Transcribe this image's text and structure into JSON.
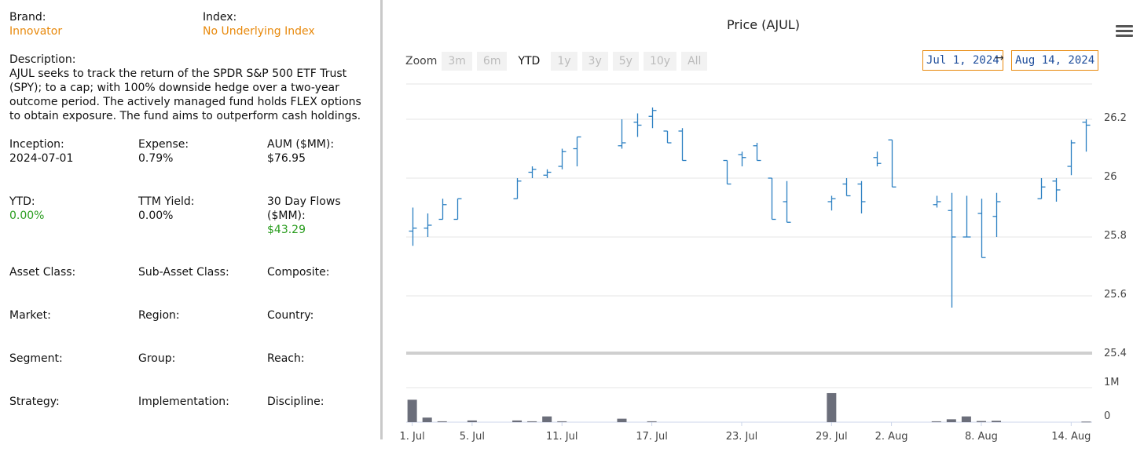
{
  "left": {
    "brand_label": "Brand:",
    "brand_value": "Innovator",
    "index_label": "Index:",
    "index_value": "No Underlying Index",
    "description_label": "Description:",
    "description_text": "AJUL seeks to track the return of the SPDR S&P 500 ETF Trust (SPY); to a cap; with 100% downside hedge over a two-year outcome period. The actively managed fund holds FLEX options to obtain exposure. The fund aims to outperform cash holdings.",
    "inception_label": "Inception:",
    "inception_value": "2024-07-01",
    "expense_label": "Expense:",
    "expense_value": "0.79%",
    "aum_label": "AUM ($MM):",
    "aum_value": "$76.95",
    "ytd_label": "YTD:",
    "ytd_value": "0.00%",
    "ttm_label": "TTM Yield:",
    "ttm_value": "0.00%",
    "flows_label": "30 Day Flows ($MM):",
    "flows_value": "$43.29",
    "asset_class_label": "Asset Class:",
    "sub_asset_class_label": "Sub-Asset Class:",
    "composite_label": "Composite:",
    "market_label": "Market:",
    "region_label": "Region:",
    "country_label": "Country:",
    "segment_label": "Segment:",
    "group_label": "Group:",
    "reach_label": "Reach:",
    "strategy_label": "Strategy:",
    "implementation_label": "Implementation:",
    "discipline_label": "Discipline:"
  },
  "chart_header": {
    "title": "Price (AJUL)",
    "zoom_label": "Zoom",
    "zoom_options": [
      "3m",
      "6m",
      "YTD",
      "1y",
      "3y",
      "5y",
      "10y",
      "All"
    ],
    "zoom_active": "YTD",
    "date_from": "Jul 1, 2024",
    "date_arrow": "→",
    "date_to": "Aug 14, 2024",
    "menu_icon": "hamburger-menu-icon"
  },
  "colors": {
    "ohlc": "#2b7fc2",
    "volume": "#6b6e7a",
    "orange": "#e8890c",
    "green": "#2a9d1f",
    "date_text": "#1f4e9c"
  },
  "chart_data": {
    "type": "ohlc",
    "title": "Price (AJUL)",
    "y_ticks": [
      25.4,
      25.6,
      25.8,
      26,
      26.2
    ],
    "y_tick_labels": [
      "25.4",
      "25.6",
      "25.8",
      "26",
      "26.2"
    ],
    "ylim": [
      25.4,
      26.32
    ],
    "x_tick_labels": [
      "1. Jul",
      "5. Jul",
      "11. Jul",
      "17. Jul",
      "23. Jul",
      "29. Jul",
      "2. Aug",
      "8. Aug",
      "14. Aug"
    ],
    "x_tick_days": [
      0,
      4,
      10,
      16,
      22,
      28,
      32,
      38,
      44
    ],
    "x_range_days": [
      -0.4,
      45.4
    ],
    "volume_ticks": [
      "1M",
      "0"
    ],
    "volume_max": 1200000,
    "bars": [
      {
        "d": 0,
        "o": 25.82,
        "h": 25.9,
        "l": 25.77,
        "c": 25.83
      },
      {
        "d": 1,
        "o": 25.83,
        "h": 25.88,
        "l": 25.8,
        "c": 25.84
      },
      {
        "d": 2,
        "o": 25.86,
        "h": 25.93,
        "l": 25.86,
        "c": 25.91
      },
      {
        "d": 3,
        "o": 25.86,
        "h": 25.93,
        "l": 25.86,
        "c": 25.93
      },
      {
        "d": 7,
        "o": 25.93,
        "h": 26.0,
        "l": 25.93,
        "c": 25.99
      },
      {
        "d": 8,
        "o": 26.02,
        "h": 26.04,
        "l": 26.0,
        "c": 26.03
      },
      {
        "d": 9,
        "o": 26.01,
        "h": 26.03,
        "l": 26.0,
        "c": 26.02
      },
      {
        "d": 10,
        "o": 26.04,
        "h": 26.1,
        "l": 26.03,
        "c": 26.09
      },
      {
        "d": 11,
        "o": 26.1,
        "h": 26.14,
        "l": 26.04,
        "c": 26.14
      },
      {
        "d": 14,
        "o": 26.11,
        "h": 26.2,
        "l": 26.1,
        "c": 26.12
      },
      {
        "d": 15,
        "o": 26.19,
        "h": 26.22,
        "l": 26.14,
        "c": 26.18
      },
      {
        "d": 16,
        "o": 26.21,
        "h": 26.24,
        "l": 26.17,
        "c": 26.23
      },
      {
        "d": 17,
        "o": 26.16,
        "h": 26.16,
        "l": 26.12,
        "c": 26.12
      },
      {
        "d": 18,
        "o": 26.16,
        "h": 26.17,
        "l": 26.06,
        "c": 26.06
      },
      {
        "d": 21,
        "o": 26.06,
        "h": 26.06,
        "l": 25.98,
        "c": 25.98
      },
      {
        "d": 22,
        "o": 26.08,
        "h": 26.09,
        "l": 26.04,
        "c": 26.07
      },
      {
        "d": 23,
        "o": 26.11,
        "h": 26.12,
        "l": 26.06,
        "c": 26.06
      },
      {
        "d": 24,
        "o": 26.0,
        "h": 26.0,
        "l": 25.86,
        "c": 25.86
      },
      {
        "d": 25,
        "o": 25.92,
        "h": 25.99,
        "l": 25.85,
        "c": 25.85
      },
      {
        "d": 28,
        "o": 25.92,
        "h": 25.94,
        "l": 25.89,
        "c": 25.93
      },
      {
        "d": 29,
        "o": 25.98,
        "h": 26.0,
        "l": 25.94,
        "c": 25.94
      },
      {
        "d": 30,
        "o": 25.98,
        "h": 25.99,
        "l": 25.88,
        "c": 25.92
      },
      {
        "d": 31,
        "o": 26.07,
        "h": 26.09,
        "l": 26.04,
        "c": 26.05
      },
      {
        "d": 32,
        "o": 26.13,
        "h": 26.13,
        "l": 25.97,
        "c": 25.97
      },
      {
        "d": 35,
        "o": 25.91,
        "h": 25.94,
        "l": 25.9,
        "c": 25.92
      },
      {
        "d": 36,
        "o": 25.89,
        "h": 25.95,
        "l": 25.56,
        "c": 25.8
      },
      {
        "d": 37,
        "o": 25.8,
        "h": 25.94,
        "l": 25.8,
        "c": 25.8
      },
      {
        "d": 38,
        "o": 25.88,
        "h": 25.93,
        "l": 25.73,
        "c": 25.73
      },
      {
        "d": 39,
        "o": 25.87,
        "h": 25.95,
        "l": 25.8,
        "c": 25.92
      },
      {
        "d": 42,
        "o": 25.93,
        "h": 26.0,
        "l": 25.93,
        "c": 25.97
      },
      {
        "d": 43,
        "o": 25.99,
        "h": 26.0,
        "l": 25.92,
        "c": 25.96
      },
      {
        "d": 44,
        "o": 26.04,
        "h": 26.13,
        "l": 26.01,
        "c": 26.12
      },
      {
        "d": 45,
        "o": 26.19,
        "h": 26.2,
        "l": 26.09,
        "c": 26.18
      }
    ],
    "volumes": [
      {
        "d": 0,
        "v": 780000
      },
      {
        "d": 1,
        "v": 160000
      },
      {
        "d": 2,
        "v": 30000
      },
      {
        "d": 4,
        "v": 60000
      },
      {
        "d": 7,
        "v": 60000
      },
      {
        "d": 8,
        "v": 30000
      },
      {
        "d": 9,
        "v": 200000
      },
      {
        "d": 10,
        "v": 30000
      },
      {
        "d": 14,
        "v": 120000
      },
      {
        "d": 16,
        "v": 30000
      },
      {
        "d": 28,
        "v": 1010000
      },
      {
        "d": 35,
        "v": 30000
      },
      {
        "d": 36,
        "v": 100000
      },
      {
        "d": 37,
        "v": 200000
      },
      {
        "d": 38,
        "v": 40000
      },
      {
        "d": 39,
        "v": 50000
      },
      {
        "d": 45,
        "v": 20000
      }
    ]
  }
}
